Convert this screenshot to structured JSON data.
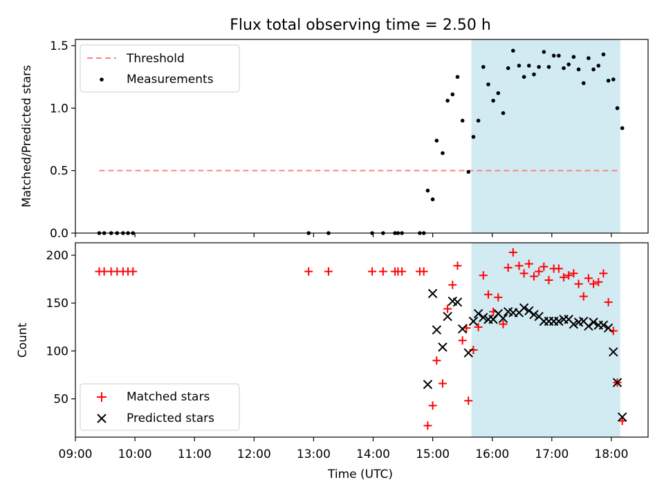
{
  "title": "Flux total observing time = 2.50 h",
  "colors": {
    "threshold": "#ff7f7f",
    "measurement": "#000000",
    "matched": "#ff0000",
    "predicted": "#000000",
    "highlight": "#add8e6"
  },
  "chart_data": [
    {
      "type": "scatter",
      "panel": "top",
      "ylabel": "Matched/Predicted stars",
      "xlim": [
        "09:00",
        "18:37"
      ],
      "ylim": [
        0,
        1.55
      ],
      "yticks": [
        "0.0",
        "0.5",
        "1.0",
        "1.5"
      ],
      "legend_position": "upper left",
      "highlight_span": [
        "15:39",
        "18:09"
      ],
      "threshold": {
        "name": "Threshold",
        "value": 0.5,
        "x_range": [
          "09:24",
          "18:09"
        ],
        "style": "dashed"
      },
      "series": [
        {
          "name": "Measurements",
          "points": [
            [
              "09:24",
              0
            ],
            [
              "09:29",
              0
            ],
            [
              "09:36",
              0
            ],
            [
              "09:42",
              0
            ],
            [
              "09:48",
              0
            ],
            [
              "09:53",
              0
            ],
            [
              "09:58",
              0
            ],
            [
              "12:55",
              0
            ],
            [
              "13:15",
              0
            ],
            [
              "13:59",
              0
            ],
            [
              "14:10",
              0
            ],
            [
              "14:22",
              0
            ],
            [
              "14:25",
              0
            ],
            [
              "14:29",
              0
            ],
            [
              "14:47",
              0
            ],
            [
              "14:51",
              0
            ],
            [
              "14:55",
              0.34
            ],
            [
              "15:00",
              0.27
            ],
            [
              "15:04",
              0.74
            ],
            [
              "15:10",
              0.64
            ],
            [
              "15:15",
              1.06
            ],
            [
              "15:20",
              1.11
            ],
            [
              "15:25",
              1.25
            ],
            [
              "15:30",
              0.9
            ],
            [
              "15:36",
              0.49
            ],
            [
              "15:41",
              0.77
            ],
            [
              "15:46",
              0.9
            ],
            [
              "15:51",
              1.33
            ],
            [
              "15:56",
              1.19
            ],
            [
              "16:01",
              1.06
            ],
            [
              "16:06",
              1.12
            ],
            [
              "16:11",
              0.96
            ],
            [
              "16:16",
              1.32
            ],
            [
              "16:21",
              1.46
            ],
            [
              "16:27",
              1.34
            ],
            [
              "16:32",
              1.25
            ],
            [
              "16:37",
              1.34
            ],
            [
              "16:42",
              1.27
            ],
            [
              "16:47",
              1.33
            ],
            [
              "16:52",
              1.45
            ],
            [
              "16:57",
              1.33
            ],
            [
              "17:02",
              1.42
            ],
            [
              "17:07",
              1.42
            ],
            [
              "17:12",
              1.32
            ],
            [
              "17:17",
              1.35
            ],
            [
              "17:22",
              1.41
            ],
            [
              "17:27",
              1.31
            ],
            [
              "17:32",
              1.2
            ],
            [
              "17:37",
              1.4
            ],
            [
              "17:42",
              1.31
            ],
            [
              "17:47",
              1.34
            ],
            [
              "17:52",
              1.43
            ],
            [
              "17:57",
              1.22
            ],
            [
              "18:02",
              1.23
            ],
            [
              "18:06",
              1.0
            ],
            [
              "18:11",
              0.84
            ]
          ]
        }
      ]
    },
    {
      "type": "scatter",
      "panel": "bottom",
      "xlabel": "Time (UTC)",
      "ylabel": "Count",
      "xlim": [
        "09:00",
        "18:37"
      ],
      "ylim": [
        10,
        213
      ],
      "xticks": [
        "09:00",
        "10:00",
        "11:00",
        "12:00",
        "13:00",
        "14:00",
        "15:00",
        "16:00",
        "17:00",
        "18:00"
      ],
      "yticks": [
        "50",
        "100",
        "150",
        "200"
      ],
      "legend_position": "lower left",
      "highlight_span": [
        "15:39",
        "18:09"
      ],
      "series": [
        {
          "name": "Matched stars",
          "marker": "plus",
          "points": [
            [
              "09:24",
              183
            ],
            [
              "09:29",
              183
            ],
            [
              "09:36",
              183
            ],
            [
              "09:42",
              183
            ],
            [
              "09:48",
              183
            ],
            [
              "09:53",
              183
            ],
            [
              "09:58",
              183
            ],
            [
              "12:55",
              183
            ],
            [
              "13:15",
              183
            ],
            [
              "13:59",
              183
            ],
            [
              "14:10",
              183
            ],
            [
              "14:22",
              183
            ],
            [
              "14:25",
              183
            ],
            [
              "14:29",
              183
            ],
            [
              "14:47",
              183
            ],
            [
              "14:51",
              183
            ],
            [
              "14:55",
              22
            ],
            [
              "15:00",
              43
            ],
            [
              "15:04",
              90
            ],
            [
              "15:10",
              66
            ],
            [
              "15:15",
              144
            ],
            [
              "15:20",
              169
            ],
            [
              "15:25",
              189
            ],
            [
              "15:30",
              111
            ],
            [
              "15:34",
              124
            ],
            [
              "15:36",
              48
            ],
            [
              "15:41",
              101
            ],
            [
              "15:46",
              125
            ],
            [
              "15:51",
              179
            ],
            [
              "15:56",
              159
            ],
            [
              "16:01",
              141
            ],
            [
              "16:06",
              156
            ],
            [
              "16:11",
              128
            ],
            [
              "16:16",
              187
            ],
            [
              "16:21",
              203
            ],
            [
              "16:27",
              189
            ],
            [
              "16:32",
              181
            ],
            [
              "16:37",
              191
            ],
            [
              "16:42",
              178
            ],
            [
              "16:47",
              183
            ],
            [
              "16:52",
              188
            ],
            [
              "16:57",
              174
            ],
            [
              "17:02",
              186
            ],
            [
              "17:07",
              186
            ],
            [
              "17:12",
              177
            ],
            [
              "17:17",
              179
            ],
            [
              "17:22",
              181
            ],
            [
              "17:27",
              170
            ],
            [
              "17:32",
              157
            ],
            [
              "17:37",
              176
            ],
            [
              "17:42",
              170
            ],
            [
              "17:47",
              172
            ],
            [
              "17:52",
              181
            ],
            [
              "17:57",
              151
            ],
            [
              "18:02",
              121
            ],
            [
              "18:06",
              67
            ],
            [
              "18:11",
              27
            ]
          ]
        },
        {
          "name": "Predicted stars",
          "marker": "x",
          "points": [
            [
              "14:55",
              65
            ],
            [
              "15:00",
              160
            ],
            [
              "15:04",
              122
            ],
            [
              "15:10",
              104
            ],
            [
              "15:15",
              136
            ],
            [
              "15:20",
              152
            ],
            [
              "15:25",
              151
            ],
            [
              "15:30",
              123
            ],
            [
              "15:36",
              98
            ],
            [
              "15:41",
              131
            ],
            [
              "15:46",
              139
            ],
            [
              "15:51",
              135
            ],
            [
              "15:56",
              133
            ],
            [
              "16:01",
              133
            ],
            [
              "16:06",
              139
            ],
            [
              "16:11",
              134
            ],
            [
              "16:16",
              141
            ],
            [
              "16:21",
              140
            ],
            [
              "16:27",
              140
            ],
            [
              "16:32",
              145
            ],
            [
              "16:37",
              142
            ],
            [
              "16:42",
              138
            ],
            [
              "16:47",
              136
            ],
            [
              "16:52",
              131
            ],
            [
              "16:57",
              131
            ],
            [
              "17:02",
              131
            ],
            [
              "17:07",
              131
            ],
            [
              "17:12",
              133
            ],
            [
              "17:17",
              133
            ],
            [
              "17:22",
              128
            ],
            [
              "17:27",
              130
            ],
            [
              "17:32",
              131
            ],
            [
              "17:37",
              126
            ],
            [
              "17:42",
              130
            ],
            [
              "17:47",
              127
            ],
            [
              "17:52",
              127
            ],
            [
              "17:57",
              124
            ],
            [
              "18:02",
              99
            ],
            [
              "18:06",
              67
            ],
            [
              "18:11",
              31
            ]
          ]
        }
      ]
    }
  ]
}
